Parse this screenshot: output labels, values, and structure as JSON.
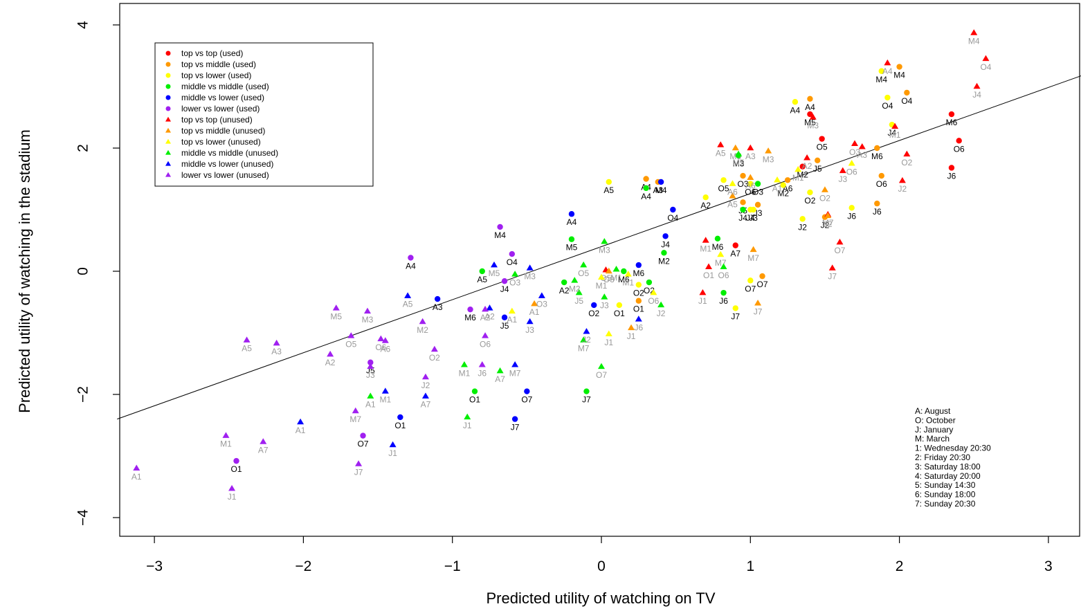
{
  "chart_data": {
    "type": "scatter",
    "xlabel": "Predicted utility of watching on TV",
    "ylabel": "Predicted utility of watching in the stadium",
    "xlim": [
      -3.25,
      3.25
    ],
    "ylim": [
      -4.3,
      4.35
    ],
    "x_ticks": [
      -3,
      -2,
      -1,
      0,
      1,
      2,
      3
    ],
    "y_ticks": [
      -4,
      -2,
      0,
      2,
      4
    ],
    "x_tick_labels": [
      "−3",
      "−2",
      "−1",
      "0",
      "1",
      "2",
      "3"
    ],
    "y_tick_labels": [
      "−4",
      "−2",
      "0",
      "2",
      "4"
    ],
    "grid": false,
    "legend_position": "top-left",
    "reference_line": {
      "x1": -3.25,
      "y1": -2.4,
      "x2": 3.25,
      "y2": 3.2
    },
    "series": [
      {
        "name": "top vs top (used)",
        "color": "#ff0000",
        "shape": "circle",
        "label_color": "#000000",
        "points": [
          [
            1.48,
            2.15,
            "O5"
          ],
          [
            1.35,
            1.7,
            "M2"
          ],
          [
            1.4,
            2.55,
            "M5"
          ],
          [
            2.35,
            2.55,
            "M6"
          ],
          [
            2.4,
            2.12,
            "O6"
          ],
          [
            2.35,
            1.68,
            "J6"
          ],
          [
            0.9,
            0.42,
            "A7"
          ]
        ]
      },
      {
        "name": "top vs middle (used)",
        "color": "#ff9900",
        "shape": "circle",
        "label_color": "#000000",
        "points": [
          [
            0.3,
            1.5,
            "A4"
          ],
          [
            1.4,
            2.8,
            "A4"
          ],
          [
            2.0,
            3.32,
            "M4"
          ],
          [
            2.05,
            2.9,
            "O4"
          ],
          [
            1.85,
            2.0,
            "M6"
          ],
          [
            1.25,
            1.48,
            "A6"
          ],
          [
            0.95,
            1.55,
            "O3"
          ],
          [
            0.95,
            1.12,
            "J5"
          ],
          [
            1.05,
            1.08,
            "J3"
          ],
          [
            1.45,
            1.8,
            "J5"
          ],
          [
            1.88,
            1.55,
            "O6"
          ],
          [
            1.85,
            1.1,
            "J6"
          ],
          [
            1.5,
            0.88,
            "J2"
          ],
          [
            1.08,
            -0.08,
            "O7"
          ],
          [
            0.25,
            -0.48,
            "O1"
          ],
          [
            0.38,
            1.45,
            "A3"
          ]
        ]
      },
      {
        "name": "top vs lower (used)",
        "color": "#ffff00",
        "shape": "circle",
        "label_color": "#000000",
        "points": [
          [
            1.88,
            3.25,
            "M4"
          ],
          [
            1.92,
            2.82,
            "O4"
          ],
          [
            1.3,
            2.75,
            "A4"
          ],
          [
            1.95,
            2.38,
            "J4"
          ],
          [
            0.82,
            1.48,
            "O5"
          ],
          [
            1.0,
            1.42,
            "O6"
          ],
          [
            0.7,
            1.2,
            "A2"
          ],
          [
            1.0,
            1.0,
            "J4"
          ],
          [
            1.02,
            1.0,
            "J3"
          ],
          [
            1.4,
            1.28,
            "O2"
          ],
          [
            1.35,
            0.85,
            "J2"
          ],
          [
            1.68,
            1.03,
            "J6"
          ],
          [
            1.0,
            -0.15,
            "O7"
          ],
          [
            0.25,
            -0.22,
            "O2"
          ],
          [
            0.12,
            -0.55,
            "O1"
          ],
          [
            0.9,
            -0.6,
            "J7"
          ],
          [
            1.22,
            1.4,
            "M2"
          ],
          [
            0.05,
            1.45,
            "A5"
          ]
        ]
      },
      {
        "name": "middle vs middle (used)",
        "color": "#00ee00",
        "shape": "circle",
        "label_color": "#000000",
        "points": [
          [
            0.3,
            1.35,
            "A4"
          ],
          [
            0.95,
            1.0,
            "J4"
          ],
          [
            1.05,
            1.42,
            "O3"
          ],
          [
            0.92,
            1.88,
            "M3"
          ],
          [
            -0.2,
            0.52,
            "M5"
          ],
          [
            0.42,
            0.3,
            "M2"
          ],
          [
            -0.8,
            0.0,
            "A5"
          ],
          [
            0.15,
            0.0,
            "M6"
          ],
          [
            -0.25,
            -0.18,
            "A2"
          ],
          [
            0.82,
            -0.35,
            "J6"
          ],
          [
            0.32,
            -0.18,
            "O2"
          ],
          [
            -0.1,
            -1.95,
            "J7"
          ],
          [
            -0.85,
            -1.95,
            "O1"
          ],
          [
            0.78,
            0.53,
            "M6"
          ]
        ]
      },
      {
        "name": "middle vs lower (used)",
        "color": "#0000ff",
        "shape": "circle",
        "label_color": "#000000",
        "points": [
          [
            0.4,
            1.45,
            "M4"
          ],
          [
            -0.2,
            0.93,
            "A4"
          ],
          [
            0.48,
            1.0,
            "O4"
          ],
          [
            0.43,
            0.57,
            "J4"
          ],
          [
            0.25,
            0.1,
            "M6"
          ],
          [
            -1.1,
            -0.45,
            "A3"
          ],
          [
            -0.65,
            -0.75,
            "J5"
          ],
          [
            -0.05,
            -0.55,
            "O2"
          ],
          [
            -0.5,
            -1.95,
            "O7"
          ],
          [
            -1.35,
            -2.37,
            "O1"
          ],
          [
            -0.58,
            -2.4,
            "J7"
          ]
        ]
      },
      {
        "name": "lower vs lower (used)",
        "color": "#a020f0",
        "shape": "circle",
        "label_color": "#000000",
        "points": [
          [
            -1.28,
            0.22,
            "A4"
          ],
          [
            -0.68,
            0.72,
            "M4"
          ],
          [
            -0.6,
            0.28,
            "O4"
          ],
          [
            -0.65,
            -0.16,
            "J4"
          ],
          [
            -0.88,
            -0.62,
            "M6"
          ],
          [
            -1.55,
            -1.48,
            "J5"
          ],
          [
            -1.6,
            -2.67,
            "O7"
          ],
          [
            -2.45,
            -3.08,
            "O1"
          ]
        ]
      },
      {
        "name": "top vs top (unused)",
        "color": "#ff0000",
        "shape": "triangle",
        "label_color": "#999999",
        "points": [
          [
            2.5,
            3.87,
            "M4"
          ],
          [
            2.58,
            3.45,
            "O4"
          ],
          [
            2.52,
            3.0,
            "J4"
          ],
          [
            1.92,
            3.38,
            "A4"
          ],
          [
            1.42,
            2.5,
            "M3"
          ],
          [
            0.8,
            2.05,
            "A5"
          ],
          [
            1.0,
            2.0,
            "A3"
          ],
          [
            1.7,
            2.07,
            "O3"
          ],
          [
            1.75,
            2.02,
            "A3"
          ],
          [
            1.97,
            2.35,
            "M1"
          ],
          [
            2.05,
            1.9,
            "O2"
          ],
          [
            1.38,
            1.84,
            "A2"
          ],
          [
            1.62,
            1.63,
            "J3"
          ],
          [
            2.02,
            1.47,
            "J2"
          ],
          [
            0.03,
            0.02,
            "O5"
          ],
          [
            0.7,
            0.5,
            "M1"
          ],
          [
            0.72,
            0.07,
            "O1"
          ],
          [
            1.6,
            0.47,
            "O7"
          ],
          [
            1.55,
            0.05,
            "J7"
          ],
          [
            0.68,
            -0.35,
            "J1"
          ],
          [
            1.52,
            0.92,
            "M7"
          ]
        ]
      },
      {
        "name": "top vs middle (unused)",
        "color": "#ff9900",
        "shape": "triangle",
        "label_color": "#999999",
        "points": [
          [
            0.9,
            2.0,
            "M5"
          ],
          [
            1.12,
            1.95,
            "M3"
          ],
          [
            1.0,
            1.52,
            "A6"
          ],
          [
            1.52,
            0.9,
            "J2"
          ],
          [
            1.5,
            1.32,
            "O2"
          ],
          [
            0.88,
            1.22,
            "A5"
          ],
          [
            1.02,
            0.35,
            "M7"
          ],
          [
            0.05,
            0.0,
            "O3"
          ],
          [
            -0.45,
            -0.53,
            "A1"
          ],
          [
            1.05,
            -0.52,
            "J7"
          ],
          [
            0.2,
            -0.92,
            "J1"
          ]
        ]
      },
      {
        "name": "top vs lower (unused)",
        "color": "#ffff00",
        "shape": "triangle",
        "label_color": "#999999",
        "points": [
          [
            1.68,
            1.75,
            "O6"
          ],
          [
            1.32,
            1.65,
            "M1"
          ],
          [
            0.88,
            1.42,
            "A6"
          ],
          [
            1.18,
            1.48,
            "A1"
          ],
          [
            0.0,
            -0.1,
            "M1"
          ],
          [
            0.18,
            -0.05,
            "M1"
          ],
          [
            0.35,
            -0.35,
            "O6"
          ],
          [
            -0.6,
            -0.65,
            "A1"
          ],
          [
            0.05,
            -1.02,
            "J1"
          ],
          [
            0.8,
            0.27,
            "M7"
          ]
        ]
      },
      {
        "name": "middle vs middle (unused)",
        "color": "#00ee00",
        "shape": "triangle",
        "label_color": "#999999",
        "points": [
          [
            0.92,
            1.9,
            "M5"
          ],
          [
            0.02,
            0.48,
            "M3"
          ],
          [
            -0.12,
            0.1,
            "O5"
          ],
          [
            -0.58,
            -0.05,
            "O3"
          ],
          [
            -0.15,
            -0.35,
            "J5"
          ],
          [
            0.02,
            -0.42,
            "J3"
          ],
          [
            0.4,
            -0.55,
            "J2"
          ],
          [
            -0.18,
            -0.15,
            "M2"
          ],
          [
            0.1,
            0.03,
            "M1"
          ],
          [
            -0.92,
            -1.52,
            "M1"
          ],
          [
            -0.68,
            -1.62,
            "A7"
          ],
          [
            -0.12,
            -1.12,
            "M7"
          ],
          [
            0.0,
            -1.55,
            "O7"
          ],
          [
            -1.55,
            -2.03,
            "A1"
          ],
          [
            -0.9,
            -2.37,
            "J1"
          ],
          [
            0.82,
            0.07,
            "O6"
          ]
        ]
      },
      {
        "name": "middle vs lower (unused)",
        "color": "#0000ff",
        "shape": "triangle",
        "label_color": "#999999",
        "points": [
          [
            -0.72,
            0.1,
            "M5"
          ],
          [
            -0.48,
            0.05,
            "M3"
          ],
          [
            -1.3,
            -0.4,
            "A5"
          ],
          [
            -0.75,
            -0.6,
            "A2"
          ],
          [
            -0.4,
            -0.4,
            "O3"
          ],
          [
            -0.48,
            -0.82,
            "J3"
          ],
          [
            -0.1,
            -0.98,
            "J2"
          ],
          [
            0.25,
            -0.78,
            "J6"
          ],
          [
            -0.58,
            -1.52,
            "M7"
          ],
          [
            -1.45,
            -1.95,
            "M1"
          ],
          [
            -1.18,
            -2.03,
            "A7"
          ],
          [
            -2.02,
            -2.45,
            "A1"
          ],
          [
            -1.4,
            -2.82,
            "J1"
          ]
        ]
      },
      {
        "name": "lower vs lower (unused)",
        "color": "#a020f0",
        "shape": "triangle",
        "label_color": "#999999",
        "points": [
          [
            -1.78,
            -0.6,
            "M5"
          ],
          [
            -1.57,
            -0.65,
            "M3"
          ],
          [
            -1.68,
            -1.05,
            "O5"
          ],
          [
            -1.48,
            -1.1,
            "O6"
          ],
          [
            -1.45,
            -1.13,
            "A6"
          ],
          [
            -1.2,
            -0.82,
            "M2"
          ],
          [
            -1.12,
            -1.27,
            "O2"
          ],
          [
            -0.78,
            -0.62,
            "A2"
          ],
          [
            -0.78,
            -1.05,
            "O6"
          ],
          [
            -0.8,
            -1.52,
            "J6"
          ],
          [
            -1.82,
            -1.35,
            "A2"
          ],
          [
            -1.55,
            -1.55,
            "J3"
          ],
          [
            -1.18,
            -1.72,
            "J2"
          ],
          [
            -2.38,
            -1.12,
            "A5"
          ],
          [
            -2.18,
            -1.17,
            "A3"
          ],
          [
            -1.65,
            -2.27,
            "M7"
          ],
          [
            -2.52,
            -2.67,
            "M1"
          ],
          [
            -2.27,
            -2.77,
            "A7"
          ],
          [
            -1.63,
            -3.13,
            "J7"
          ],
          [
            -3.12,
            -3.2,
            "A1"
          ],
          [
            -2.48,
            -3.53,
            "J1"
          ]
        ]
      }
    ],
    "notes": [
      "A: August",
      "O: October",
      "J: January",
      "M: March",
      "1: Wednesday 20:30",
      "2: Friday 20:30",
      "3: Saturday 18:00",
      "4: Saturday 20:00",
      "5: Sunday 14:30",
      "6: Sunday 18:00",
      "7: Sunday 20:30"
    ]
  }
}
